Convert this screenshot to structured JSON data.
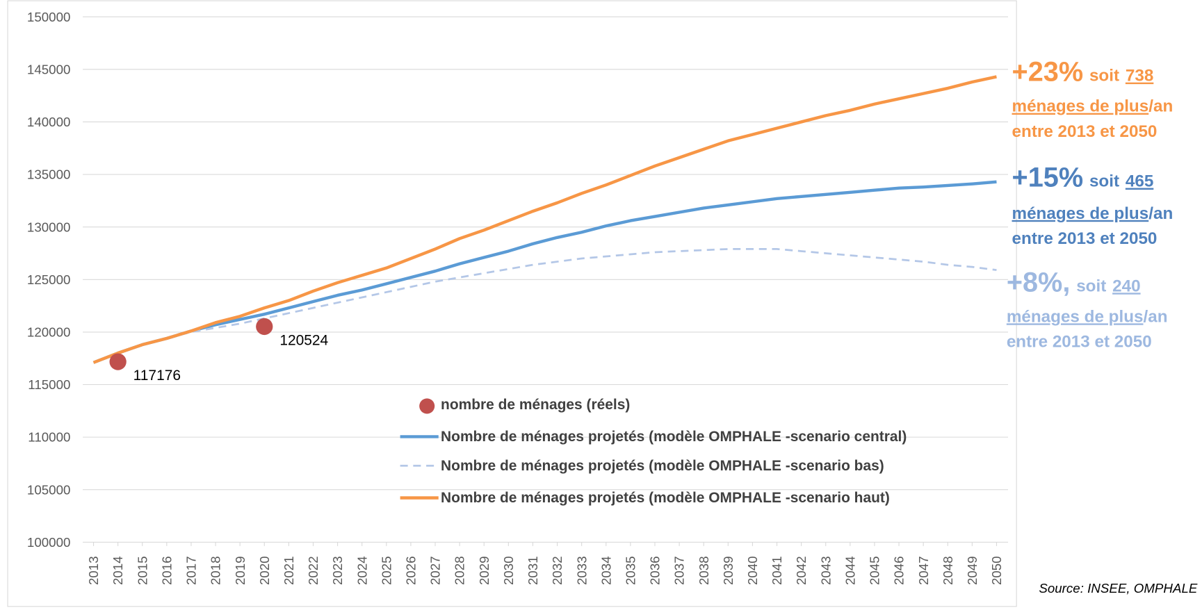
{
  "chart_data": {
    "type": "line",
    "x": [
      2013,
      2014,
      2015,
      2016,
      2017,
      2018,
      2019,
      2020,
      2021,
      2022,
      2023,
      2024,
      2025,
      2026,
      2027,
      2028,
      2029,
      2030,
      2031,
      2032,
      2033,
      2034,
      2035,
      2036,
      2037,
      2038,
      2039,
      2040,
      2041,
      2042,
      2043,
      2044,
      2045,
      2046,
      2047,
      2048,
      2049,
      2050
    ],
    "xticks": [
      2013,
      2014,
      2015,
      2016,
      2017,
      2018,
      2019,
      2020,
      2021,
      2022,
      2023,
      2024,
      2025,
      2026,
      2027,
      2028,
      2029,
      2030,
      2031,
      2032,
      2033,
      2034,
      2035,
      2036,
      2037,
      2038,
      2039,
      2040,
      2041,
      2042,
      2043,
      2044,
      2045,
      2046,
      2047,
      2048,
      2049,
      2050
    ],
    "xlim": [
      2013,
      2050
    ],
    "ylim": [
      100000,
      150000
    ],
    "yticks": [
      100000,
      105000,
      110000,
      115000,
      120000,
      125000,
      130000,
      135000,
      140000,
      145000,
      150000
    ],
    "grid": true,
    "points": {
      "name": "nombre de ménages (réels)",
      "color": "#c0504d",
      "x": [
        2014,
        2020
      ],
      "values": [
        117176,
        120524
      ]
    },
    "series": [
      {
        "name": "Nombre de ménages projetés (modèle OMPHALE -scenario central)",
        "color": "#5b9bd5",
        "dash": false,
        "values": [
          117100,
          118000,
          118800,
          119400,
          120100,
          120700,
          121200,
          121700,
          122300,
          122900,
          123500,
          124000,
          124600,
          125200,
          125800,
          126500,
          127100,
          127700,
          128400,
          129000,
          129500,
          130100,
          130600,
          131000,
          131400,
          131800,
          132100,
          132400,
          132700,
          132900,
          133100,
          133300,
          133500,
          133700,
          133800,
          133950,
          134100,
          134300
        ]
      },
      {
        "name": "Nombre de ménages projetés (modèle OMPHALE -scenario bas)",
        "color": "#b4c7e7",
        "dash": true,
        "values": [
          117100,
          118000,
          118800,
          119400,
          120000,
          120400,
          120800,
          121300,
          121800,
          122300,
          122800,
          123300,
          123800,
          124300,
          124800,
          125200,
          125600,
          126000,
          126400,
          126700,
          127000,
          127200,
          127400,
          127600,
          127700,
          127800,
          127900,
          127900,
          127900,
          127700,
          127500,
          127300,
          127100,
          126900,
          126700,
          126400,
          126200,
          125900
        ]
      },
      {
        "name": "Nombre de ménages projetés (modèle OMPHALE -scenario haut)",
        "color": "#f79646",
        "dash": false,
        "values": [
          117100,
          118000,
          118800,
          119400,
          120100,
          120900,
          121500,
          122300,
          123000,
          123900,
          124700,
          125400,
          126100,
          127000,
          127900,
          128900,
          129700,
          130600,
          131500,
          132300,
          133200,
          134000,
          134900,
          135800,
          136600,
          137400,
          138200,
          138800,
          139400,
          140000,
          140600,
          141100,
          141700,
          142200,
          142700,
          143200,
          143800,
          144300
        ]
      }
    ],
    "annotations": [
      {
        "color": "#f79646",
        "lines": [
          [
            {
              "text": "+23%",
              "big": true
            },
            {
              "text": "soit"
            },
            {
              "text": "738",
              "underline": true
            }
          ],
          [
            {
              "text": "ménages de plus",
              "underline": true
            },
            {
              "text": "/an"
            }
          ],
          [
            {
              "text": "entre 2013 et 2050"
            }
          ]
        ]
      },
      {
        "color": "#4f81bd",
        "lines": [
          [
            {
              "text": "+15%",
              "big": true
            },
            {
              "text": "soit"
            },
            {
              "text": "465",
              "underline": true
            }
          ],
          [
            {
              "text": "ménages de plus",
              "underline": true
            },
            {
              "text": "/an"
            }
          ],
          [
            {
              "text": "entre 2013 et 2050"
            }
          ]
        ]
      },
      {
        "color": "#9db8e0",
        "lines": [
          [
            {
              "text": "+8%,",
              "big": true
            },
            {
              "text": "soit"
            },
            {
              "text": "240",
              "underline": true
            }
          ],
          [
            {
              "text": "ménages de plus",
              "underline": true
            },
            {
              "text": "/an"
            }
          ],
          [
            {
              "text": "entre 2013 et 2050"
            }
          ]
        ]
      }
    ],
    "source": "Source: INSEE, OMPHALE"
  }
}
